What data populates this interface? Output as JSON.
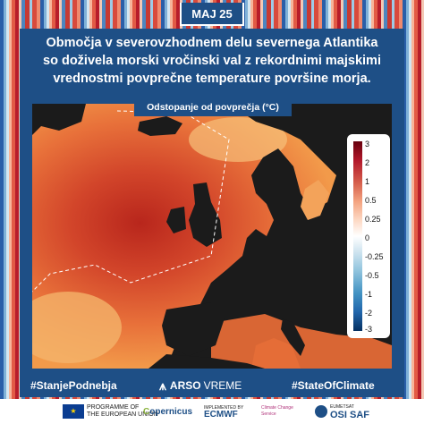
{
  "badge": "MAJ 25",
  "title_lines": [
    "Območja v severovzhodnem delu severnega Atlantika",
    "so doživela morski vročinski val z rekordnimi majskimi",
    "vrednostmi povprečne temperature površine morja."
  ],
  "map_label": "Odstopanje od povprečja (°C)",
  "colorbar": {
    "ticks": [
      "3",
      "2",
      "1",
      "0.5",
      "0.25",
      "0",
      "-0.25",
      "-0.5",
      "-1",
      "-2",
      "-3"
    ],
    "colors": {
      "max": "#67000d",
      "mid": "#ffffff",
      "min": "#053061"
    }
  },
  "footer": {
    "left_tag": "#StanjePodnebja",
    "center_brand": "ARSO",
    "center_brand2": "VREME",
    "right_tag": "#StateOfClimate"
  },
  "logos": {
    "eu_line1": "PROGRAMME OF",
    "eu_line2": "THE EUROPEAN UNION",
    "copernicus": "opernicus",
    "ecmwf_prefix": "IMPLEMENTED BY",
    "ecmwf": "ECMWF",
    "c3s": "Climate Change Service",
    "eumetsat": "EUMETSAT",
    "osisaf": "OSI SAF"
  },
  "colors": {
    "panel": "#1e4f86",
    "land": "#1b1b1b",
    "hot": "#c6321f",
    "warm": "#f08a3a"
  }
}
